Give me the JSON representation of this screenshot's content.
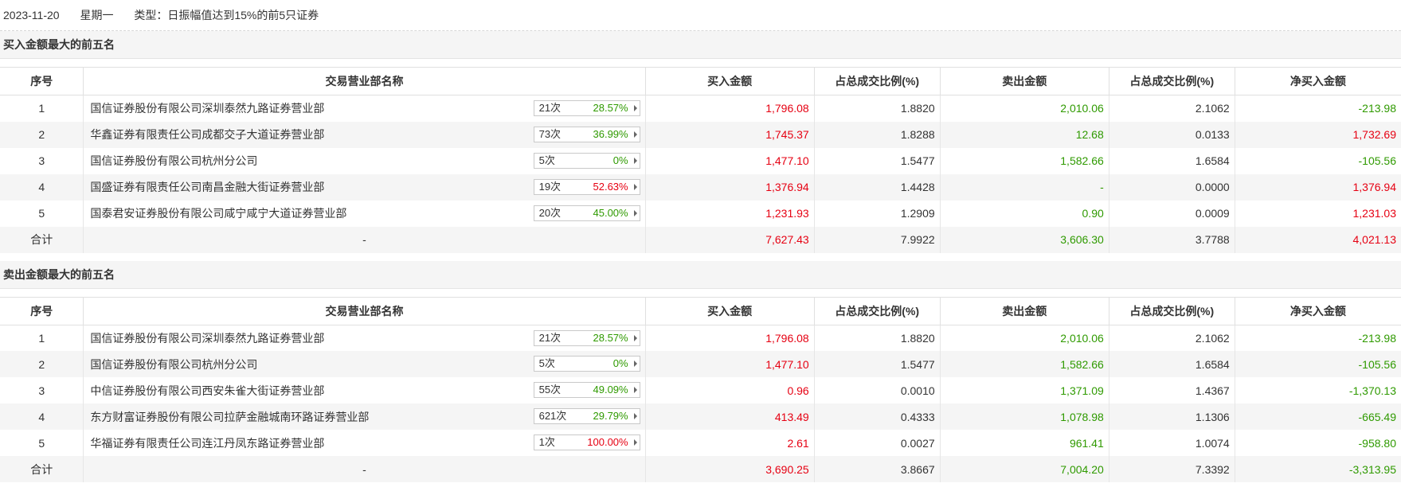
{
  "header": {
    "date": "2023-11-20",
    "weekday": "星期一",
    "type": "类型：日振幅值达到15%的前5只证券"
  },
  "colors": {
    "up": "#e60012",
    "down": "#2f9a00"
  },
  "columns": [
    "序号",
    "交易营业部名称",
    "买入金额",
    "占总成交比例(%)",
    "卖出金额",
    "占总成交比例(%)",
    "净买入金额"
  ],
  "buy_section": {
    "title": "买入金额最大的前五名",
    "rows": [
      {
        "idx": "1",
        "name": "国信证券股份有限公司深圳泰然九路证券营业部",
        "count": "21次",
        "pct": "28.57%",
        "pct_color": "green",
        "buy": "1,796.08",
        "buy_pct": "1.8820",
        "sell": "2,010.06",
        "sell_pct": "2.1062",
        "net": "-213.98",
        "net_color": "green"
      },
      {
        "idx": "2",
        "name": "华鑫证券有限责任公司成都交子大道证券营业部",
        "count": "73次",
        "pct": "36.99%",
        "pct_color": "green",
        "buy": "1,745.37",
        "buy_pct": "1.8288",
        "sell": "12.68",
        "sell_pct": "0.0133",
        "net": "1,732.69",
        "net_color": "red"
      },
      {
        "idx": "3",
        "name": "国信证券股份有限公司杭州分公司",
        "count": "5次",
        "pct": "0%",
        "pct_color": "green",
        "buy": "1,477.10",
        "buy_pct": "1.5477",
        "sell": "1,582.66",
        "sell_pct": "1.6584",
        "net": "-105.56",
        "net_color": "green"
      },
      {
        "idx": "4",
        "name": "国盛证券有限责任公司南昌金融大街证券营业部",
        "count": "19次",
        "pct": "52.63%",
        "pct_color": "red",
        "buy": "1,376.94",
        "buy_pct": "1.4428",
        "sell": "-",
        "sell_pct": "0.0000",
        "net": "1,376.94",
        "net_color": "red"
      },
      {
        "idx": "5",
        "name": "国泰君安证券股份有限公司咸宁咸宁大道证券营业部",
        "count": "20次",
        "pct": "45.00%",
        "pct_color": "green",
        "buy": "1,231.93",
        "buy_pct": "1.2909",
        "sell": "0.90",
        "sell_pct": "0.0009",
        "net": "1,231.03",
        "net_color": "red"
      }
    ],
    "total": {
      "label": "合计",
      "name": "-",
      "buy": "7,627.43",
      "buy_pct": "7.9922",
      "sell": "3,606.30",
      "sell_pct": "3.7788",
      "net": "4,021.13",
      "net_color": "red"
    }
  },
  "sell_section": {
    "title": "卖出金额最大的前五名",
    "rows": [
      {
        "idx": "1",
        "name": "国信证券股份有限公司深圳泰然九路证券营业部",
        "count": "21次",
        "pct": "28.57%",
        "pct_color": "green",
        "buy": "1,796.08",
        "buy_pct": "1.8820",
        "sell": "2,010.06",
        "sell_pct": "2.1062",
        "net": "-213.98",
        "net_color": "green"
      },
      {
        "idx": "2",
        "name": "国信证券股份有限公司杭州分公司",
        "count": "5次",
        "pct": "0%",
        "pct_color": "green",
        "buy": "1,477.10",
        "buy_pct": "1.5477",
        "sell": "1,582.66",
        "sell_pct": "1.6584",
        "net": "-105.56",
        "net_color": "green"
      },
      {
        "idx": "3",
        "name": "中信证券股份有限公司西安朱雀大街证券营业部",
        "count": "55次",
        "pct": "49.09%",
        "pct_color": "green",
        "buy": "0.96",
        "buy_pct": "0.0010",
        "sell": "1,371.09",
        "sell_pct": "1.4367",
        "net": "-1,370.13",
        "net_color": "green"
      },
      {
        "idx": "4",
        "name": "东方财富证券股份有限公司拉萨金融城南环路证券营业部",
        "count": "621次",
        "pct": "29.79%",
        "pct_color": "green",
        "buy": "413.49",
        "buy_pct": "0.4333",
        "sell": "1,078.98",
        "sell_pct": "1.1306",
        "net": "-665.49",
        "net_color": "green"
      },
      {
        "idx": "5",
        "name": "华福证券有限责任公司连江丹凤东路证券营业部",
        "count": "1次",
        "pct": "100.00%",
        "pct_color": "red",
        "buy": "2.61",
        "buy_pct": "0.0027",
        "sell": "961.41",
        "sell_pct": "1.0074",
        "net": "-958.80",
        "net_color": "green"
      }
    ],
    "total": {
      "label": "合计",
      "name": "-",
      "buy": "3,690.25",
      "buy_pct": "3.8667",
      "sell": "7,004.20",
      "sell_pct": "7.3392",
      "net": "-3,313.95",
      "net_color": "green"
    }
  }
}
